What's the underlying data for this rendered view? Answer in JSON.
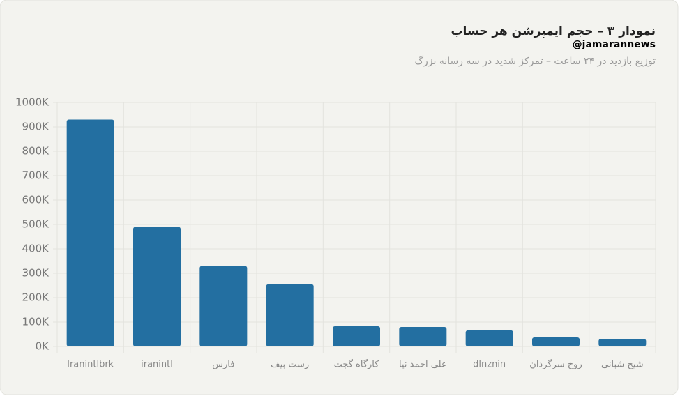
{
  "chart_data": {
    "type": "bar",
    "title": "نمودار ۳ – حجم ایمپرشن هر حساب",
    "watermark": "@jamarannews",
    "subtitle": "توزیع بازدید در ۲۴ ساعت – تمرکز شدید در سه رسانه بزرگ",
    "categories": [
      "Iranintlbrk",
      "iranintl",
      "فارس",
      "رست بیف",
      "کارگاه گجت",
      "علی احمد نیا",
      "dlnznin",
      "روح سرگردان",
      "شیخ شبانی"
    ],
    "values": [
      930000,
      490000,
      330000,
      255000,
      83000,
      80000,
      66000,
      37000,
      31000
    ],
    "color": "#236fa1",
    "ylim": [
      0,
      1000000
    ],
    "yticks": [
      {
        "value": 0,
        "label": "0K"
      },
      {
        "value": 100000,
        "label": "100K"
      },
      {
        "value": 200000,
        "label": "200K"
      },
      {
        "value": 300000,
        "label": "300K"
      },
      {
        "value": 400000,
        "label": "400K"
      },
      {
        "value": 500000,
        "label": "500K"
      },
      {
        "value": 600000,
        "label": "600K"
      },
      {
        "value": 700000,
        "label": "700K"
      },
      {
        "value": 800000,
        "label": "800K"
      },
      {
        "value": 900000,
        "label": "900K"
      },
      {
        "value": 1000000,
        "label": "1000K"
      }
    ],
    "grid": true
  }
}
